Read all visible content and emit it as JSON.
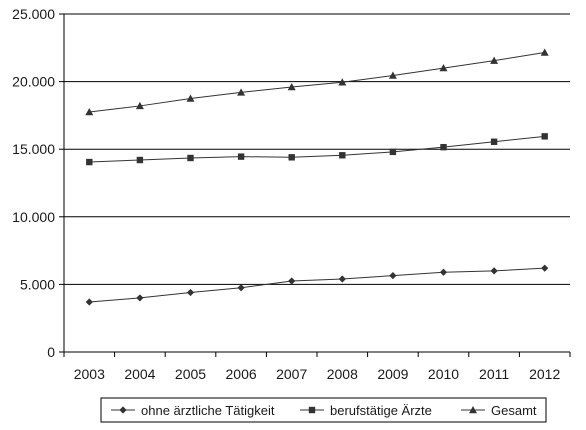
{
  "chart_data": {
    "type": "line",
    "title": "",
    "xlabel": "",
    "ylabel": "",
    "categories": [
      "2003",
      "2004",
      "2005",
      "2006",
      "2007",
      "2008",
      "2009",
      "2010",
      "2011",
      "2012"
    ],
    "ylim": [
      0,
      25000
    ],
    "yticks": [
      0,
      5000,
      10000,
      15000,
      20000,
      25000
    ],
    "ytick_labels": [
      "0",
      "5.000",
      "10.000",
      "15.000",
      "20.000",
      "25.000"
    ],
    "grid": "horizontal major gridlines",
    "legend_position": "bottom",
    "series": [
      {
        "name": "ohne ärztliche Tätigkeit",
        "marker": "diamond",
        "color": "#333333",
        "values": [
          3700,
          4000,
          4400,
          4750,
          5250,
          5400,
          5650,
          5900,
          6000,
          6200
        ]
      },
      {
        "name": "berufstätige Ärzte",
        "marker": "square",
        "color": "#333333",
        "values": [
          14050,
          14200,
          14350,
          14450,
          14400,
          14550,
          14800,
          15150,
          15550,
          15950
        ]
      },
      {
        "name": "Gesamt",
        "marker": "triangle",
        "color": "#333333",
        "values": [
          17750,
          18200,
          18750,
          19200,
          19600,
          19950,
          20450,
          21000,
          21550,
          22150
        ]
      }
    ]
  }
}
